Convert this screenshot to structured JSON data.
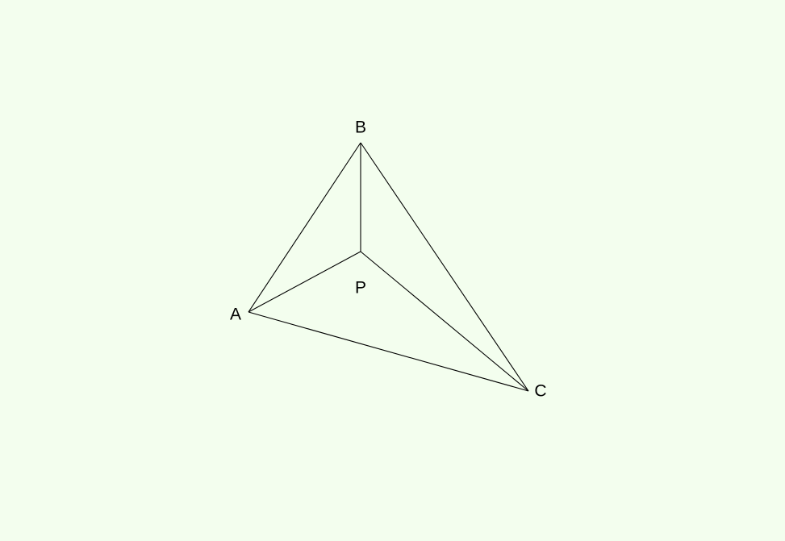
{
  "diagram": {
    "background_color": "#f3feee",
    "line_color": "#000000",
    "points": {
      "A": {
        "label": "A"
      },
      "B": {
        "label": "B"
      },
      "C": {
        "label": "C"
      },
      "P": {
        "label": "P"
      }
    },
    "segments": [
      {
        "from": "A",
        "to": "B",
        "name": "segment-ab"
      },
      {
        "from": "B",
        "to": "C",
        "name": "segment-bc"
      },
      {
        "from": "A",
        "to": "C",
        "name": "segment-ac"
      },
      {
        "from": "P",
        "to": "A",
        "name": "segment-pa"
      },
      {
        "from": "P",
        "to": "B",
        "name": "segment-pb"
      },
      {
        "from": "P",
        "to": "C",
        "name": "segment-pc"
      }
    ]
  }
}
